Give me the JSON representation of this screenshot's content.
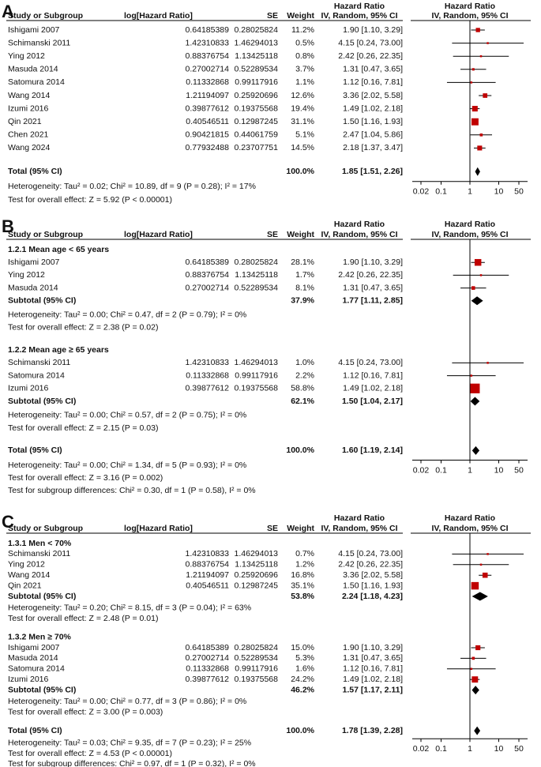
{
  "chart_data": [
    {
      "type": "forest",
      "label": "A",
      "columns": {
        "study": "Study or Subgroup",
        "log_hr": "log[Hazard Ratio]",
        "se": "SE",
        "weight": "Weight",
        "ci_title": "Hazard Ratio",
        "ci_method": "IV, Random, 95% CI",
        "plot_title": "Hazard Ratio",
        "plot_method": "IV, Random, 95% CI"
      },
      "groups": [
        {
          "studies": [
            {
              "name": "Ishigami 2007",
              "log_hr": 0.64185389,
              "se": 0.28025824,
              "weight": 11.2,
              "weight_label": "11.2%",
              "hr": 1.9,
              "lo": 1.1,
              "hi": 3.29,
              "ci_label": "1.90 [1.10, 3.29]"
            },
            {
              "name": "Schimanski 2011",
              "log_hr": 1.42310833,
              "se": 1.46294013,
              "weight": 0.5,
              "weight_label": "0.5%",
              "hr": 4.15,
              "lo": 0.24,
              "hi": 73,
              "ci_label": "4.15 [0.24, 73.00]"
            },
            {
              "name": "Ying 2012",
              "log_hr": 0.88376754,
              "se": 1.13425118,
              "weight": 0.8,
              "weight_label": "0.8%",
              "hr": 2.42,
              "lo": 0.26,
              "hi": 22.35,
              "ci_label": "2.42 [0.26, 22.35]"
            },
            {
              "name": "Masuda 2014",
              "log_hr": 0.27002714,
              "se": 0.52289534,
              "weight": 3.7,
              "weight_label": "3.7%",
              "hr": 1.31,
              "lo": 0.47,
              "hi": 3.65,
              "ci_label": "1.31 [0.47, 3.65]"
            },
            {
              "name": "Satomura 2014",
              "log_hr": 0.11332868,
              "se": 0.99117916,
              "weight": 1.1,
              "weight_label": "1.1%",
              "hr": 1.12,
              "lo": 0.16,
              "hi": 7.81,
              "ci_label": "1.12 [0.16, 7.81]"
            },
            {
              "name": "Wang 2014",
              "log_hr": 1.21194097,
              "se": 0.25920696,
              "weight": 12.6,
              "weight_label": "12.6%",
              "hr": 3.36,
              "lo": 2.02,
              "hi": 5.58,
              "ci_label": "3.36 [2.02, 5.58]"
            },
            {
              "name": "Izumi 2016",
              "log_hr": 0.39877612,
              "se": 0.19375568,
              "weight": 19.4,
              "weight_label": "19.4%",
              "hr": 1.49,
              "lo": 1.02,
              "hi": 2.18,
              "ci_label": "1.49 [1.02, 2.18]"
            },
            {
              "name": "Qin 2021",
              "log_hr": 0.40546511,
              "se": 0.12987245,
              "weight": 31.1,
              "weight_label": "31.1%",
              "hr": 1.5,
              "lo": 1.16,
              "hi": 1.93,
              "ci_label": "1.50 [1.16, 1.93]"
            },
            {
              "name": "Chen 2021",
              "log_hr": 0.90421815,
              "se": 0.44061759,
              "weight": 5.1,
              "weight_label": "5.1%",
              "hr": 2.47,
              "lo": 1.04,
              "hi": 5.86,
              "ci_label": "2.47 [1.04, 5.86]"
            },
            {
              "name": "Wang 2024",
              "log_hr": 0.77932488,
              "se": 0.23707751,
              "weight": 14.5,
              "weight_label": "14.5%",
              "hr": 2.18,
              "lo": 1.37,
              "hi": 3.47,
              "ci_label": "2.18 [1.37, 3.47]"
            }
          ]
        }
      ],
      "total": {
        "name": "Total (95% CI)",
        "weight": 100,
        "weight_label": "100.0%",
        "hr": 1.85,
        "lo": 1.51,
        "hi": 2.26,
        "ci_label": "1.85 [1.51, 2.26]"
      },
      "heterogeneity": "Heterogeneity: Tau² = 0.02; Chi² = 10.89, df = 9 (P = 0.28); I² = 17%",
      "overall_effect": "Test for overall effect: Z = 5.92 (P < 0.00001)",
      "xscale": "log",
      "xlim": [
        0.01,
        100
      ],
      "xticks": [
        0.02,
        0.1,
        1,
        10,
        50
      ],
      "reference_line": 1,
      "square_color": "#c00000"
    },
    {
      "type": "forest",
      "label": "B",
      "columns": {
        "study": "Study or Subgroup",
        "log_hr": "log[Hazard Ratio]",
        "se": "SE",
        "weight": "Weight",
        "ci_title": "Hazard Ratio",
        "ci_method": "IV, Random, 95% CI",
        "plot_title": "Hazard Ratio",
        "plot_method": "IV, Random, 95% CI"
      },
      "groups": [
        {
          "title": "1.2.1 Mean age < 65 years",
          "studies": [
            {
              "name": "Ishigami 2007",
              "log_hr": 0.64185389,
              "se": 0.28025824,
              "weight": 28.1,
              "weight_label": "28.1%",
              "hr": 1.9,
              "lo": 1.1,
              "hi": 3.29,
              "ci_label": "1.90 [1.10, 3.29]"
            },
            {
              "name": "Ying 2012",
              "log_hr": 0.88376754,
              "se": 1.13425118,
              "weight": 1.7,
              "weight_label": "1.7%",
              "hr": 2.42,
              "lo": 0.26,
              "hi": 22.35,
              "ci_label": "2.42 [0.26, 22.35]"
            },
            {
              "name": "Masuda 2014",
              "log_hr": 0.27002714,
              "se": 0.52289534,
              "weight": 8.1,
              "weight_label": "8.1%",
              "hr": 1.31,
              "lo": 0.47,
              "hi": 3.65,
              "ci_label": "1.31 [0.47, 3.65]"
            }
          ],
          "subtotal": {
            "name": "Subtotal (95% CI)",
            "weight": 37.9,
            "weight_label": "37.9%",
            "hr": 1.77,
            "lo": 1.11,
            "hi": 2.85,
            "ci_label": "1.77 [1.11, 2.85]"
          },
          "heterogeneity": "Heterogeneity: Tau² = 0.00; Chi² = 0.47, df = 2 (P = 0.79); I² = 0%",
          "overall_effect": "Test for overall effect: Z = 2.38 (P = 0.02)"
        },
        {
          "title": "1.2.2 Mean age ≥ 65 years",
          "studies": [
            {
              "name": "Schimanski 2011",
              "log_hr": 1.42310833,
              "se": 1.46294013,
              "weight": 1,
              "weight_label": "1.0%",
              "hr": 4.15,
              "lo": 0.24,
              "hi": 73,
              "ci_label": "4.15 [0.24, 73.00]"
            },
            {
              "name": "Satomura 2014",
              "log_hr": 0.11332868,
              "se": 0.99117916,
              "weight": 2.2,
              "weight_label": "2.2%",
              "hr": 1.12,
              "lo": 0.16,
              "hi": 7.81,
              "ci_label": "1.12 [0.16, 7.81]"
            },
            {
              "name": "Izumi 2016",
              "log_hr": 0.39877612,
              "se": 0.19375568,
              "weight": 58.8,
              "weight_label": "58.8%",
              "hr": 1.49,
              "lo": 1.02,
              "hi": 2.18,
              "ci_label": "1.49 [1.02, 2.18]"
            }
          ],
          "subtotal": {
            "name": "Subtotal (95% CI)",
            "weight": 62.1,
            "weight_label": "62.1%",
            "hr": 1.5,
            "lo": 1.04,
            "hi": 2.17,
            "ci_label": "1.50 [1.04, 2.17]"
          },
          "heterogeneity": "Heterogeneity: Tau² = 0.00; Chi² = 0.57, df = 2 (P = 0.75); I² = 0%",
          "overall_effect": "Test for overall effect: Z = 2.15 (P = 0.03)"
        }
      ],
      "total": {
        "name": "Total (95% CI)",
        "weight": 100,
        "weight_label": "100.0%",
        "hr": 1.6,
        "lo": 1.19,
        "hi": 2.14,
        "ci_label": "1.60 [1.19, 2.14]"
      },
      "heterogeneity": "Heterogeneity: Tau² = 0.00; Chi² = 1.34, df = 5 (P = 0.93); I² = 0%",
      "overall_effect": "Test for overall effect: Z = 3.16 (P = 0.002)",
      "subgroup_differences": "Test for subgroup differences: Chi² = 0.30, df = 1 (P = 0.58), I² = 0%",
      "xscale": "log",
      "xlim": [
        0.01,
        100
      ],
      "xticks": [
        0.02,
        0.1,
        1,
        10,
        50
      ],
      "reference_line": 1,
      "square_color": "#c00000"
    },
    {
      "type": "forest",
      "label": "C",
      "columns": {
        "study": "Study or Subgroup",
        "log_hr": "log[Hazard Ratio]",
        "se": "SE",
        "weight": "Weight",
        "ci_title": "Hazard Ratio",
        "ci_method": "IV, Random, 95% CI",
        "plot_title": "Hazard Ratio",
        "plot_method": "IV, Random, 95% CI"
      },
      "groups": [
        {
          "title": "1.3.1 Men < 70%",
          "studies": [
            {
              "name": "Schimanski 2011",
              "log_hr": 1.42310833,
              "se": 1.46294013,
              "weight": 0.7,
              "weight_label": "0.7%",
              "hr": 4.15,
              "lo": 0.24,
              "hi": 73,
              "ci_label": "4.15 [0.24, 73.00]"
            },
            {
              "name": "Ying 2012",
              "log_hr": 0.88376754,
              "se": 1.13425118,
              "weight": 1.2,
              "weight_label": "1.2%",
              "hr": 2.42,
              "lo": 0.26,
              "hi": 22.35,
              "ci_label": "2.42 [0.26, 22.35]"
            },
            {
              "name": "Wang 2014",
              "log_hr": 1.21194097,
              "se": 0.25920696,
              "weight": 16.8,
              "weight_label": "16.8%",
              "hr": 3.36,
              "lo": 2.02,
              "hi": 5.58,
              "ci_label": "3.36 [2.02, 5.58]"
            },
            {
              "name": "Qin 2021",
              "log_hr": 0.40546511,
              "se": 0.12987245,
              "weight": 35.1,
              "weight_label": "35.1%",
              "hr": 1.5,
              "lo": 1.16,
              "hi": 1.93,
              "ci_label": "1.50 [1.16, 1.93]"
            }
          ],
          "subtotal": {
            "name": "Subtotal (95% CI)",
            "weight": 53.8,
            "weight_label": "53.8%",
            "hr": 2.24,
            "lo": 1.18,
            "hi": 4.23,
            "ci_label": "2.24 [1.18, 4.23]"
          },
          "heterogeneity": "Heterogeneity: Tau² = 0.20; Chi² = 8.15, df = 3 (P = 0.04); I² = 63%",
          "overall_effect": "Test for overall effect: Z = 2.48 (P = 0.01)"
        },
        {
          "title": "1.3.2 Men ≥ 70%",
          "studies": [
            {
              "name": "Ishigami 2007",
              "log_hr": 0.64185389,
              "se": 0.28025824,
              "weight": 15,
              "weight_label": "15.0%",
              "hr": 1.9,
              "lo": 1.1,
              "hi": 3.29,
              "ci_label": "1.90 [1.10, 3.29]"
            },
            {
              "name": "Masuda 2014",
              "log_hr": 0.27002714,
              "se": 0.52289534,
              "weight": 5.3,
              "weight_label": "5.3%",
              "hr": 1.31,
              "lo": 0.47,
              "hi": 3.65,
              "ci_label": "1.31 [0.47, 3.65]"
            },
            {
              "name": "Satomura 2014",
              "log_hr": 0.11332868,
              "se": 0.99117916,
              "weight": 1.6,
              "weight_label": "1.6%",
              "hr": 1.12,
              "lo": 0.16,
              "hi": 7.81,
              "ci_label": "1.12 [0.16, 7.81]"
            },
            {
              "name": "Izumi 2016",
              "log_hr": 0.39877612,
              "se": 0.19375568,
              "weight": 24.2,
              "weight_label": "24.2%",
              "hr": 1.49,
              "lo": 1.02,
              "hi": 2.18,
              "ci_label": "1.49 [1.02, 2.18]"
            }
          ],
          "subtotal": {
            "name": "Subtotal (95% CI)",
            "weight": 46.2,
            "weight_label": "46.2%",
            "hr": 1.57,
            "lo": 1.17,
            "hi": 2.11,
            "ci_label": "1.57 [1.17, 2.11]"
          },
          "heterogeneity": "Heterogeneity: Tau² = 0.00; Chi² = 0.77, df = 3 (P = 0.86); I² = 0%",
          "overall_effect": "Test for overall effect: Z = 3.00 (P = 0.003)"
        }
      ],
      "total": {
        "name": "Total (95% CI)",
        "weight": 100,
        "weight_label": "100.0%",
        "hr": 1.78,
        "lo": 1.39,
        "hi": 2.28,
        "ci_label": "1.78 [1.39, 2.28]"
      },
      "heterogeneity": "Heterogeneity: Tau² = 0.03; Chi² = 9.35, df = 7 (P = 0.23); I² = 25%",
      "overall_effect": "Test for overall effect: Z = 4.53 (P < 0.00001)",
      "subgroup_differences": "Test for subgroup differences: Chi² = 0.97, df = 1 (P = 0.32), I² = 0%",
      "xscale": "log",
      "xlim": [
        0.01,
        100
      ],
      "xticks": [
        0.02,
        0.1,
        1,
        10,
        50
      ],
      "reference_line": 1,
      "square_color": "#c00000"
    }
  ]
}
